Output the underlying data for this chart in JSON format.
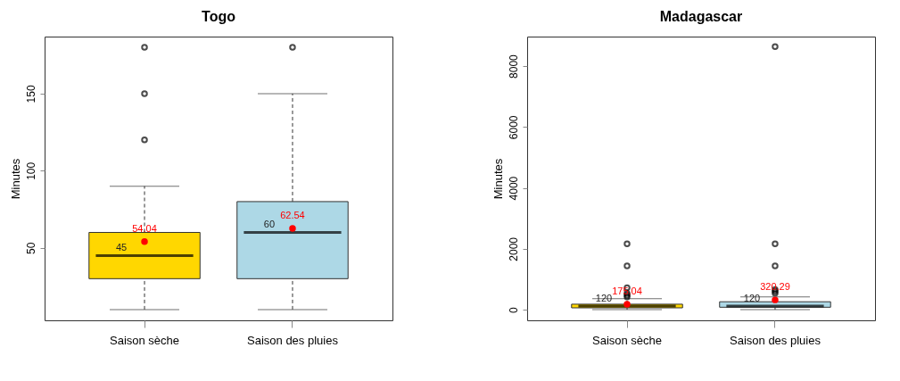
{
  "chart_data": [
    {
      "type": "box",
      "title": "Togo",
      "ylabel": "Minutes",
      "categories": [
        "Saison sèche",
        "Saison des pluies"
      ],
      "colors": [
        "#ffd700",
        "#add8e6"
      ],
      "ylim": [
        3,
        187
      ],
      "yticks": [
        50,
        100,
        150
      ],
      "grid": false,
      "boxes": [
        {
          "low": 10,
          "q1": 30,
          "median": 45,
          "q3": 60,
          "high": 90,
          "outliers": [
            120,
            150,
            180
          ]
        },
        {
          "low": 10,
          "q1": 30,
          "median": 60,
          "q3": 80,
          "high": 150,
          "outliers": [
            180
          ]
        }
      ],
      "series": [
        {
          "type": "scatter",
          "x": [
            "Saison sèche",
            "Saison des pluies"
          ],
          "values": [
            54.04,
            62.54
          ],
          "color": "#ff0000"
        }
      ],
      "annotations": [
        {
          "text": "45",
          "x": "Saison sèche",
          "y": 45
        },
        {
          "text": "54.04",
          "x": "Saison sèche",
          "y": 54.04
        },
        {
          "text": "60",
          "x": "Saison des pluies",
          "y": 60
        },
        {
          "text": "62.54",
          "x": "Saison des pluies",
          "y": 62.54
        }
      ]
    },
    {
      "type": "box",
      "title": "Madagascar",
      "ylabel": "Minutes",
      "categories": [
        "Saison sèche",
        "Saison des pluies"
      ],
      "colors": [
        "#ffd700",
        "#add8e6"
      ],
      "ylim": [
        -350,
        8970
      ],
      "yticks": [
        0,
        2000,
        4000,
        6000,
        8000
      ],
      "grid": false,
      "boxes": [
        {
          "low": 0,
          "q1": 60,
          "median": 120,
          "q3": 180,
          "high": 360,
          "outliers": [
            420,
            480,
            540,
            720,
            1440,
            2160
          ]
        },
        {
          "low": 0,
          "q1": 80,
          "median": 120,
          "q3": 260,
          "high": 420,
          "outliers": [
            540,
            600,
            660,
            1440,
            2160,
            8640
          ]
        }
      ],
      "series": [
        {
          "type": "scatter",
          "x": [
            "Saison sèche",
            "Saison des pluies"
          ],
          "values": [
            175.04,
            320.29
          ],
          "color": "#ff0000"
        }
      ],
      "annotations": [
        {
          "text": "120",
          "x": "Saison sèche",
          "y": 120
        },
        {
          "text": "175.04",
          "x": "Saison sèche",
          "y": 175.04
        },
        {
          "text": "120",
          "x": "Saison des pluies",
          "y": 120
        },
        {
          "text": "320.29",
          "x": "Saison des pluies",
          "y": 320.29
        }
      ]
    }
  ]
}
